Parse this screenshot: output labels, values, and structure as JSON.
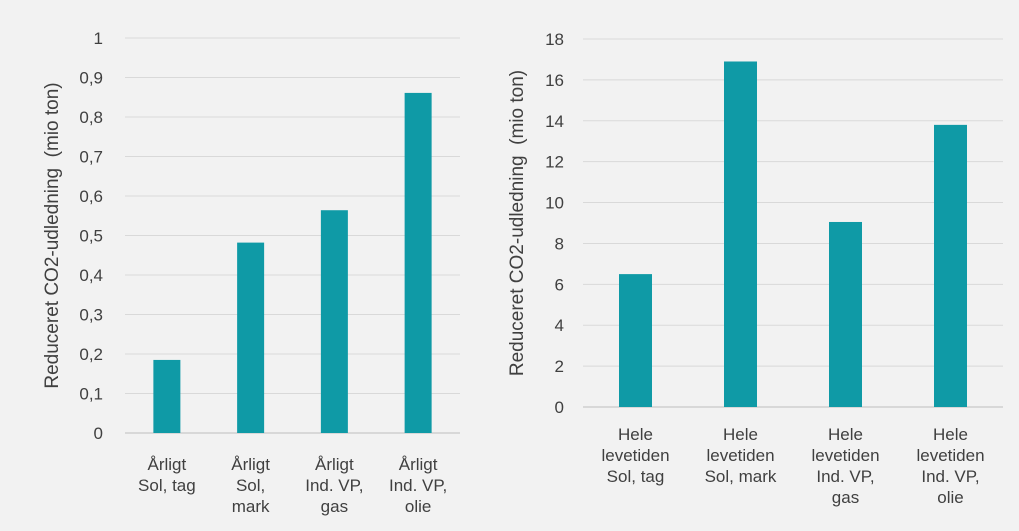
{
  "chart_data": [
    {
      "type": "bar",
      "title": "",
      "xlabel": "",
      "ylabel": "Reduceret CO2-udledning  (mio ton)",
      "ylim": [
        0,
        1
      ],
      "yticks": [
        "0",
        "0,1",
        "0,2",
        "0,3",
        "0,4",
        "0,5",
        "0,6",
        "0,7",
        "0,8",
        "0,9",
        "1"
      ],
      "categories": [
        [
          "Årligt",
          "Sol, tag"
        ],
        [
          "Årligt",
          "Sol,",
          "mark"
        ],
        [
          "Årligt",
          "Ind. VP,",
          "gas"
        ],
        [
          "Årligt",
          "Ind. VP,",
          "olie"
        ]
      ],
      "values": [
        0.185,
        0.482,
        0.564,
        0.861
      ],
      "color": "#0f9aa6",
      "grid": true
    },
    {
      "type": "bar",
      "title": "",
      "xlabel": "",
      "ylabel": "Reduceret CO2-udledning  (mio ton)",
      "ylim": [
        0,
        18
      ],
      "yticks": [
        "0",
        "2",
        "4",
        "6",
        "8",
        "10",
        "12",
        "14",
        "16",
        "18"
      ],
      "categories": [
        [
          "Hele",
          "levetiden",
          "Sol, tag"
        ],
        [
          "Hele",
          "levetiden",
          "Sol, mark"
        ],
        [
          "Hele",
          "levetiden",
          "Ind. VP,",
          "gas"
        ],
        [
          "Hele",
          "levetiden",
          "Ind. VP,",
          "olie"
        ]
      ],
      "values": [
        6.5,
        16.9,
        9.05,
        13.8
      ],
      "color": "#0f9aa6",
      "grid": true
    }
  ]
}
